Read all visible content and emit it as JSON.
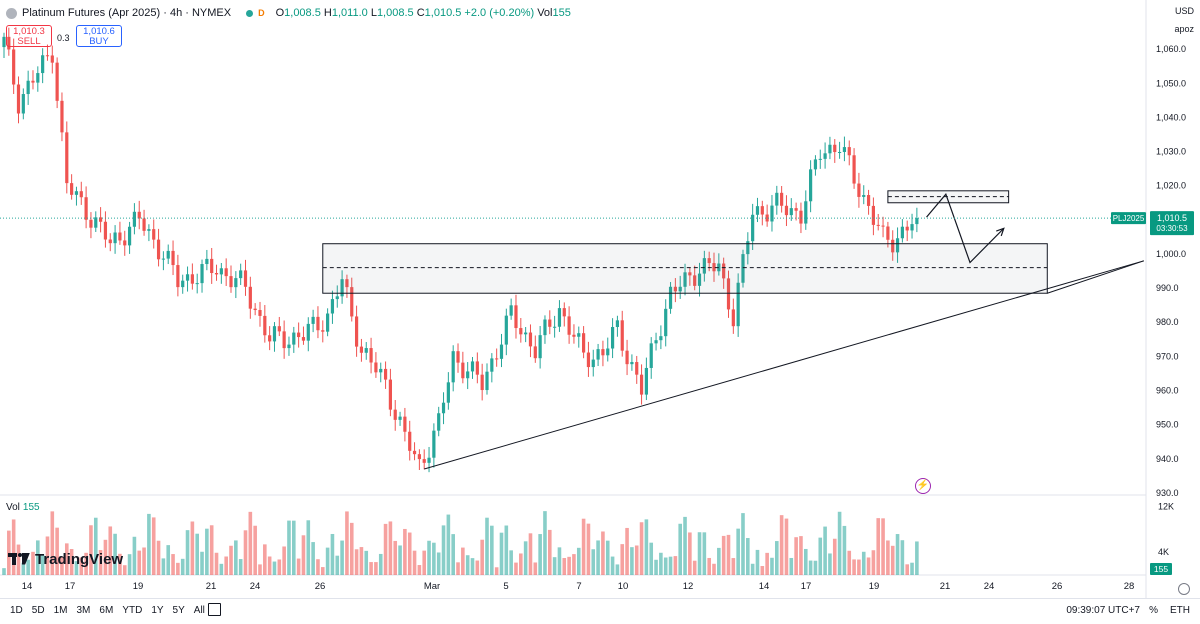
{
  "header": {
    "title": "Platinum Futures (Apr 2025) · 4h · NYMEX",
    "market_badge": "D",
    "o_label": "O",
    "o_value": "1,008.5",
    "h_label": "H",
    "h_value": "1,011.0",
    "l_label": "L",
    "l_value": "1,008.5",
    "c_label": "C",
    "c_value": "1,010.5",
    "change": "+2.0 (+0.20%)",
    "vol_label": "Vol",
    "vol_value": "155"
  },
  "trade": {
    "sell_price": "1,010.3",
    "sell_label": "SELL",
    "spread": "0.3",
    "buy_price": "1,010.6",
    "buy_label": "BUY"
  },
  "axis_top": {
    "currency": "USD",
    "unit": "apoz"
  },
  "volume_pane": {
    "label": "Vol",
    "value": "155",
    "ticks": [
      "12K",
      "4K"
    ],
    "last_value": "155"
  },
  "branding": {
    "text": "TradingView"
  },
  "price_tags": {
    "symbol": "PLJ2025",
    "last": "1,010.5",
    "countdown": "03:30:53"
  },
  "bottom_bar": {
    "ranges": [
      "1D",
      "5D",
      "1M",
      "3M",
      "6M",
      "YTD",
      "1Y",
      "5Y",
      "All"
    ],
    "clock": "09:39:07 UTC+7",
    "percent_label": "%",
    "eth_label": "ETH"
  },
  "colors": {
    "up": "#26a69a",
    "down": "#ef5350",
    "symbol_tag": "#089981",
    "accent": "#2962ff"
  },
  "chart_data": {
    "type": "candlestick",
    "title": "Platinum Futures (Apr 2025) · 4h · NYMEX",
    "ylim": [
      925,
      1070
    ],
    "yticks": [
      930,
      940,
      950,
      960,
      970,
      980,
      990,
      1000,
      1010,
      1020,
      1030,
      1040,
      1050,
      1060
    ],
    "ytick_labels": [
      "930.0",
      "940.0",
      "950.0",
      "960.0",
      "970.0",
      "980.0",
      "990.0",
      "1,000.0",
      "1,010.0",
      "1,020.0",
      "1,030.0",
      "1,040.0",
      "1,050.0",
      "1,060.0"
    ],
    "x_labels": [
      "14",
      "17",
      "19",
      "21",
      "24",
      "26",
      "Mar",
      "5",
      "7",
      "10",
      "12",
      "14",
      "17",
      "19",
      "21",
      "24",
      "26",
      "28"
    ],
    "last_price": 1010.5,
    "volume_ylim": [
      0,
      14000
    ],
    "anchors": [
      {
        "i": 0,
        "p": 1062
      },
      {
        "i": 3,
        "p": 1045
      },
      {
        "i": 8,
        "p": 1055
      },
      {
        "i": 10,
        "p": 1060
      },
      {
        "i": 13,
        "p": 1020
      },
      {
        "i": 17,
        "p": 1013
      },
      {
        "i": 22,
        "p": 1003
      },
      {
        "i": 28,
        "p": 1010
      },
      {
        "i": 33,
        "p": 1000
      },
      {
        "i": 36,
        "p": 992
      },
      {
        "i": 44,
        "p": 996
      },
      {
        "i": 50,
        "p": 990
      },
      {
        "i": 55,
        "p": 975
      },
      {
        "i": 62,
        "p": 976
      },
      {
        "i": 67,
        "p": 982
      },
      {
        "i": 70,
        "p": 992
      },
      {
        "i": 74,
        "p": 972
      },
      {
        "i": 79,
        "p": 962
      },
      {
        "i": 83,
        "p": 946
      },
      {
        "i": 86,
        "p": 938
      },
      {
        "i": 90,
        "p": 950
      },
      {
        "i": 93,
        "p": 970
      },
      {
        "i": 99,
        "p": 962
      },
      {
        "i": 105,
        "p": 982
      },
      {
        "i": 110,
        "p": 972
      },
      {
        "i": 115,
        "p": 984
      },
      {
        "i": 120,
        "p": 970
      },
      {
        "i": 124,
        "p": 971
      },
      {
        "i": 127,
        "p": 978
      },
      {
        "i": 132,
        "p": 960
      },
      {
        "i": 135,
        "p": 976
      },
      {
        "i": 138,
        "p": 988
      },
      {
        "i": 144,
        "p": 996
      },
      {
        "i": 148,
        "p": 996
      },
      {
        "i": 151,
        "p": 982
      },
      {
        "i": 155,
        "p": 1012
      },
      {
        "i": 160,
        "p": 1014
      },
      {
        "i": 165,
        "p": 1012
      },
      {
        "i": 169,
        "p": 1030
      },
      {
        "i": 173,
        "p": 1032
      },
      {
        "i": 176,
        "p": 1022
      },
      {
        "i": 179,
        "p": 1014
      },
      {
        "i": 182,
        "p": 1004
      },
      {
        "i": 184,
        "p": 1004
      },
      {
        "i": 187,
        "p": 1008
      },
      {
        "i": 189,
        "p": 1010.5
      }
    ],
    "drawings": [
      {
        "type": "rectangle",
        "label": "zone-lower",
        "x0": 66,
        "x1": 216,
        "y0": 988.5,
        "y1": 1003
      },
      {
        "type": "hline-dashed",
        "x0": 66,
        "x1": 216,
        "y": 996
      },
      {
        "type": "rectangle",
        "label": "zone-upper",
        "x0": 183,
        "x1": 208,
        "y0": 1015,
        "y1": 1018.5
      },
      {
        "type": "hline-dashed",
        "x0": 183,
        "x1": 208,
        "y": 1016.8
      },
      {
        "type": "trendline",
        "x0": 87,
        "y0": 937,
        "x1": 236,
        "y1": 998
      },
      {
        "type": "trendline",
        "x0": 216,
        "y0": 988.5,
        "x1": 236,
        "y1": 998
      },
      {
        "type": "projection",
        "points": [
          [
            191,
            1010.8
          ],
          [
            195,
            1017.5
          ],
          [
            200,
            997.5
          ],
          [
            207,
            1007.5
          ]
        ]
      }
    ]
  }
}
